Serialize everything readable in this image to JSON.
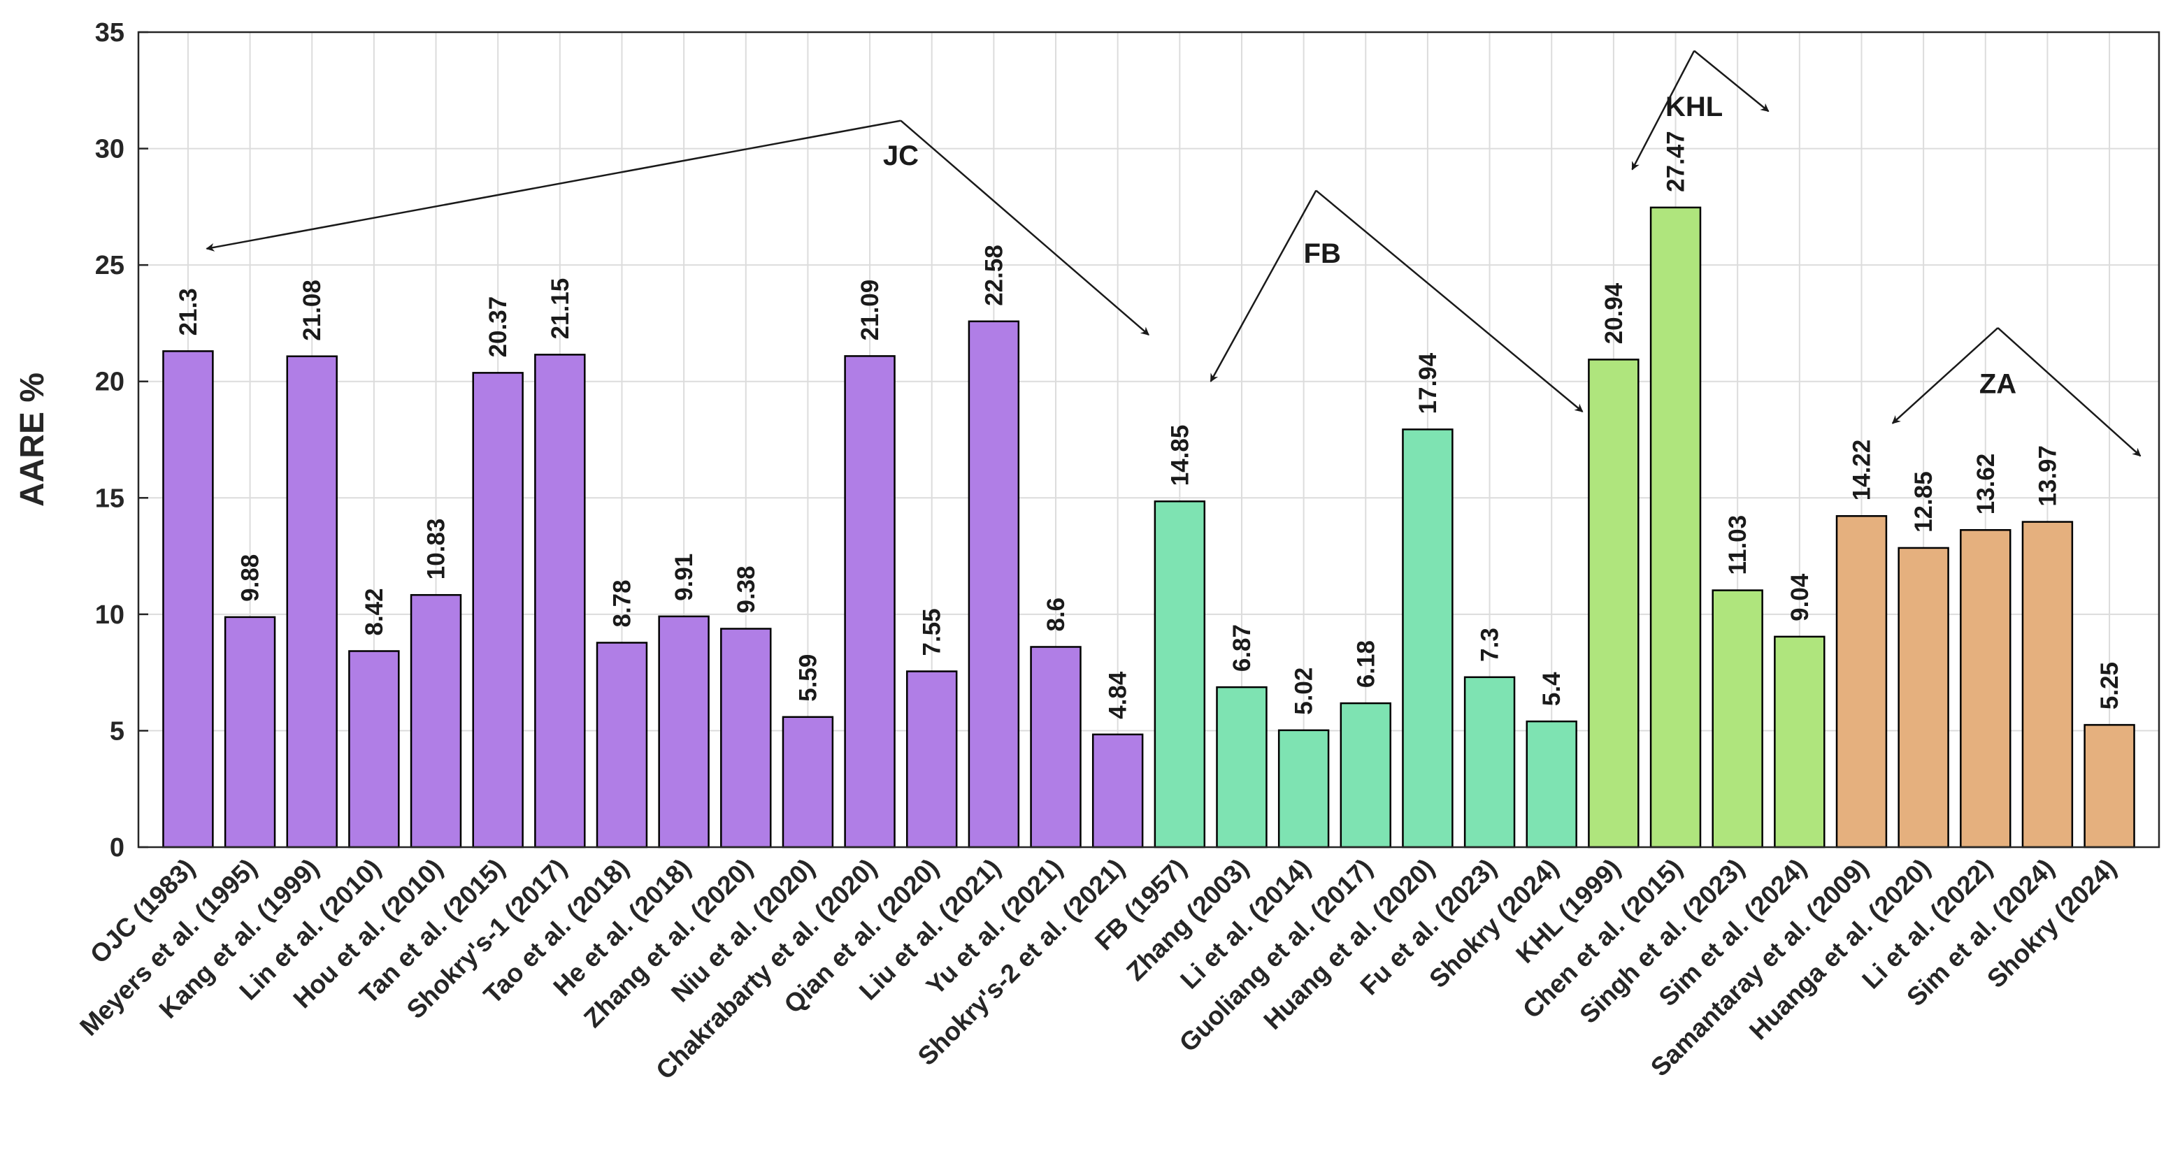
{
  "chart_data": {
    "type": "bar",
    "title": "",
    "xlabel": "",
    "ylabel": "AARE %",
    "ylim": [
      0,
      35
    ],
    "yticks": [
      0,
      5,
      10,
      15,
      20,
      25,
      30,
      35
    ],
    "grid": true,
    "colors": {
      "JC": "#b07ee6",
      "FB": "#7ee3b2",
      "KHL": "#afe57d",
      "ZA": "#e5b07e"
    },
    "categories": [
      "OJC (1983)",
      "Meyers et al. (1995)",
      "Kang et al. (1999)",
      "Lin et al. (2010)",
      "Hou et al. (2010)",
      "Tan et al. (2015)",
      "Shokry's-1 (2017)",
      "Tao et al. (2018)",
      "He et al. (2018)",
      "Zhang et al. (2020)",
      "Niu et al. (2020)",
      "Chakrabarty et al. (2020)",
      "Qian et al. (2020)",
      "Liu et al. (2021)",
      "Yu et al. (2021)",
      "Shokry's-2 et al. (2021)",
      "FB (1957)",
      "Zhang (2003)",
      "Li et al. (2014)",
      "Guoliang et al. (2017)",
      "Huang et al. (2020)",
      "Fu et al. (2023)",
      "Shokry (2024)",
      "KHL (1999)",
      "Chen et al. (2015)",
      "Singh et al. (2023)",
      "Sim et al. (2024)",
      "Samantaray et al. (2009)",
      "Huanga et al. (2020)",
      "Li et al. (2022)",
      "Sim et al. (2024)",
      "Shokry (2024)"
    ],
    "values": [
      21.3,
      9.88,
      21.08,
      8.42,
      10.83,
      20.37,
      21.15,
      8.78,
      9.91,
      9.38,
      5.59,
      21.09,
      7.55,
      22.58,
      8.6,
      4.84,
      14.85,
      6.87,
      5.02,
      6.18,
      17.94,
      7.3,
      5.4,
      20.94,
      27.47,
      11.03,
      9.04,
      14.22,
      12.85,
      13.62,
      13.97,
      5.25
    ],
    "value_labels": [
      "21.3",
      "9.88",
      "21.08",
      "8.42",
      "10.83",
      "20.37",
      "21.15",
      "8.78",
      "9.91",
      "9.38",
      "5.59",
      "21.09",
      "7.55",
      "22.58",
      "8.6",
      "4.84",
      "14.85",
      "6.87",
      "5.02",
      "6.18",
      "17.94",
      "7.3",
      "5.4",
      "20.94",
      "27.47",
      "11.03",
      "9.04",
      "14.22",
      "12.85",
      "13.62",
      "13.97",
      "5.25"
    ],
    "groups": [
      {
        "name": "JC",
        "start": 0,
        "end": 15
      },
      {
        "name": "FB",
        "start": 16,
        "end": 22
      },
      {
        "name": "KHL",
        "start": 23,
        "end": 26
      },
      {
        "name": "ZA",
        "start": 27,
        "end": 31
      }
    ],
    "annotations": [
      {
        "text": "JC",
        "apex": [
          11.5,
          31.2
        ],
        "label_at": [
          11.5,
          29.3
        ],
        "left_tip": [
          0.3,
          25.7
        ],
        "right_tip": [
          15.5,
          22.0
        ]
      },
      {
        "text": "FB",
        "apex": [
          18.2,
          28.2
        ],
        "label_at": [
          18.3,
          25.1
        ],
        "left_tip": [
          16.5,
          20.0
        ],
        "right_tip": [
          22.5,
          18.7
        ]
      },
      {
        "text": "KHL",
        "apex": [
          24.3,
          34.2
        ],
        "label_at": [
          24.3,
          31.4
        ],
        "left_tip": [
          23.3,
          29.1
        ],
        "right_tip": [
          25.5,
          31.6
        ]
      },
      {
        "text": "ZA",
        "apex": [
          29.2,
          22.3
        ],
        "label_at": [
          29.2,
          19.5
        ],
        "left_tip": [
          27.5,
          18.2
        ],
        "right_tip": [
          31.5,
          16.8
        ]
      }
    ]
  }
}
